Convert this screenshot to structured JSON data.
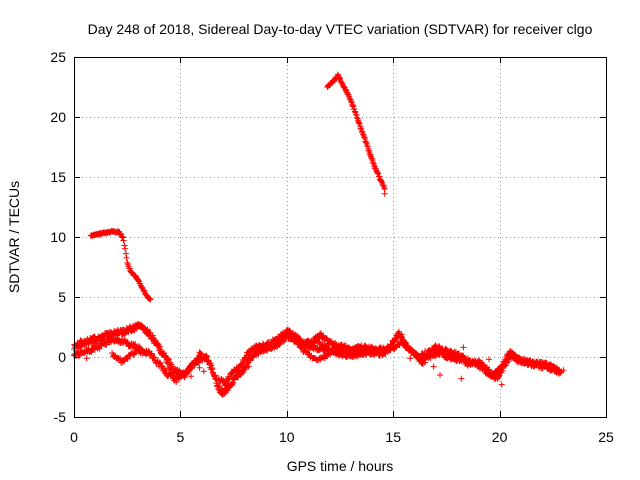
{
  "chart_data": {
    "type": "scatter",
    "title": "Day 248 of 2018, Sidereal Day-to-day VTEC variation (SDTVAR) for receiver clgo",
    "xlabel": "GPS time / hours",
    "ylabel": "SDTVAR / TECUs",
    "xlim": [
      0,
      25
    ],
    "ylim": [
      -5,
      25
    ],
    "xticks": [
      0,
      5,
      10,
      15,
      20,
      25
    ],
    "yticks": [
      -5,
      0,
      5,
      10,
      15,
      20,
      25
    ],
    "grid": true,
    "marker": "plus",
    "color": "#ff0000",
    "series": [
      {
        "name": "SDTVAR",
        "segments": [
          {
            "kind": "curve",
            "points": [
              [
                0.8,
                10.1
              ],
              [
                1.3,
                10.3
              ],
              [
                1.8,
                10.5
              ],
              [
                2.1,
                10.4
              ],
              [
                2.3,
                10.0
              ],
              [
                2.4,
                9.0
              ],
              [
                2.5,
                7.8
              ],
              [
                2.7,
                7.0
              ],
              [
                3.0,
                6.5
              ],
              [
                3.2,
                5.8
              ],
              [
                3.4,
                5.1
              ],
              [
                3.6,
                4.8
              ]
            ],
            "step": 0.03,
            "spread": 0.15
          },
          {
            "kind": "curve",
            "points": [
              [
                11.9,
                22.5
              ],
              [
                12.2,
                23.0
              ],
              [
                12.4,
                23.5
              ],
              [
                12.6,
                22.8
              ],
              [
                12.9,
                21.8
              ],
              [
                13.2,
                20.5
              ],
              [
                13.5,
                19.0
              ],
              [
                13.8,
                17.5
              ],
              [
                14.1,
                16.0
              ],
              [
                14.4,
                14.8
              ],
              [
                14.6,
                14.0
              ]
            ],
            "step": 0.025,
            "spread": 0.15
          },
          {
            "kind": "curve",
            "points": [
              [
                0.0,
                0.8
              ],
              [
                0.5,
                1.2
              ],
              [
                1.0,
                1.5
              ],
              [
                1.5,
                1.8
              ],
              [
                2.0,
                2.0
              ],
              [
                2.5,
                2.2
              ],
              [
                3.0,
                2.6
              ],
              [
                3.3,
                2.4
              ],
              [
                3.6,
                1.8
              ],
              [
                4.0,
                0.8
              ],
              [
                4.3,
                0.0
              ],
              [
                4.7,
                -1.2
              ],
              [
                5.2,
                -1.5
              ],
              [
                5.6,
                -0.6
              ],
              [
                6.0,
                0.2
              ]
            ],
            "step": 0.02,
            "spread": 0.5
          },
          {
            "kind": "curve",
            "points": [
              [
                0.0,
                0.2
              ],
              [
                0.6,
                0.5
              ],
              [
                1.2,
                0.9
              ],
              [
                1.8,
                1.5
              ],
              [
                2.4,
                1.2
              ],
              [
                3.0,
                0.8
              ],
              [
                3.6,
                0.2
              ],
              [
                4.0,
                -0.6
              ],
              [
                4.4,
                -1.4
              ],
              [
                4.8,
                -1.9
              ],
              [
                5.3,
                -1.2
              ],
              [
                5.8,
                -0.4
              ],
              [
                6.2,
                0.0
              ]
            ],
            "step": 0.03,
            "spread": 0.4
          },
          {
            "kind": "curve",
            "points": [
              [
                1.8,
                0.2
              ],
              [
                2.1,
                -0.2
              ],
              [
                2.3,
                -0.4
              ],
              [
                2.6,
                0.1
              ],
              [
                3.0,
                0.5
              ],
              [
                3.4,
                0.3
              ]
            ],
            "step": 0.04,
            "spread": 0.3
          },
          {
            "kind": "curve",
            "points": [
              [
                6.2,
                0.0
              ],
              [
                6.5,
                -1.0
              ],
              [
                6.8,
                -2.6
              ],
              [
                7.0,
                -3.0
              ],
              [
                7.3,
                -2.4
              ],
              [
                7.7,
                -1.5
              ],
              [
                8.0,
                -1.0
              ],
              [
                8.4,
                0.2
              ],
              [
                8.8,
                0.6
              ],
              [
                9.2,
                0.8
              ],
              [
                9.7,
                1.2
              ],
              [
                10.0,
                1.8
              ],
              [
                10.4,
                1.4
              ],
              [
                10.8,
                1.0
              ],
              [
                11.2,
                1.3
              ],
              [
                11.6,
                1.8
              ],
              [
                12.0,
                1.2
              ],
              [
                12.4,
                0.8
              ],
              [
                12.8,
                0.4
              ],
              [
                13.2,
                0.5
              ],
              [
                13.6,
                0.6
              ],
              [
                14.0,
                0.5
              ],
              [
                14.4,
                0.3
              ],
              [
                14.8,
                0.6
              ],
              [
                15.1,
                1.6
              ],
              [
                15.3,
                2.0
              ],
              [
                15.6,
                1.0
              ],
              [
                16.0,
                0.2
              ],
              [
                16.4,
                -0.4
              ],
              [
                16.8,
                0.2
              ],
              [
                17.2,
                0.4
              ],
              [
                17.6,
                0.0
              ],
              [
                18.2,
                -0.2
              ],
              [
                18.5,
                -0.5
              ],
              [
                19.0,
                -0.4
              ],
              [
                19.4,
                -1.0
              ],
              [
                19.7,
                -1.6
              ],
              [
                20.0,
                -1.0
              ],
              [
                20.3,
                -0.2
              ],
              [
                20.5,
                0.4
              ],
              [
                20.8,
                -0.2
              ],
              [
                21.2,
                -0.4
              ],
              [
                21.6,
                -0.6
              ],
              [
                22.0,
                -0.6
              ],
              [
                22.4,
                -0.8
              ],
              [
                22.8,
                -1.3
              ]
            ],
            "step": 0.02,
            "spread": 0.45
          },
          {
            "kind": "curve",
            "points": [
              [
                6.8,
                -1.8
              ],
              [
                7.1,
                -2.2
              ],
              [
                7.4,
                -1.4
              ],
              [
                7.8,
                -0.8
              ],
              [
                8.2,
                0.4
              ],
              [
                8.6,
                0.9
              ],
              [
                9.0,
                1.0
              ],
              [
                9.5,
                1.4
              ],
              [
                10.0,
                2.2
              ],
              [
                10.5,
                1.6
              ],
              [
                11.0,
                0.9
              ],
              [
                11.5,
                0.7
              ],
              [
                12.0,
                0.6
              ],
              [
                12.5,
                0.4
              ],
              [
                13.0,
                0.6
              ],
              [
                13.5,
                0.8
              ],
              [
                14.0,
                0.7
              ],
              [
                14.5,
                0.6
              ],
              [
                15.0,
                0.8
              ],
              [
                15.4,
                1.2
              ],
              [
                15.8,
                0.5
              ],
              [
                16.2,
                0.0
              ],
              [
                16.6,
                0.3
              ],
              [
                17.0,
                0.8
              ],
              [
                17.5,
                0.5
              ],
              [
                18.0,
                0.2
              ],
              [
                18.6,
                -0.3
              ],
              [
                19.1,
                -0.8
              ],
              [
                19.5,
                -1.4
              ],
              [
                19.9,
                -1.8
              ],
              [
                20.2,
                -0.8
              ],
              [
                20.6,
                0.2
              ],
              [
                21.0,
                -0.3
              ],
              [
                21.5,
                -0.5
              ],
              [
                22.0,
                -0.8
              ],
              [
                22.5,
                -1.0
              ],
              [
                22.9,
                -1.2
              ]
            ],
            "step": 0.03,
            "spread": 0.4
          },
          {
            "kind": "curve",
            "points": [
              [
                10.6,
                0.8
              ],
              [
                11.0,
                0.2
              ],
              [
                11.4,
                -0.2
              ],
              [
                11.8,
                0.0
              ],
              [
                12.2,
                0.6
              ],
              [
                12.6,
                1.0
              ],
              [
                13.0,
                0.6
              ],
              [
                13.4,
                0.2
              ],
              [
                13.8,
                0.4
              ]
            ],
            "step": 0.04,
            "spread": 0.25
          },
          {
            "kind": "curve",
            "points": [
              [
                11.3,
                1.5
              ],
              [
                11.7,
                1.0
              ],
              [
                12.1,
                0.4
              ],
              [
                12.6,
                0.1
              ],
              [
                13.1,
                0.0
              ],
              [
                13.6,
                0.3
              ],
              [
                14.1,
                0.2
              ]
            ],
            "step": 0.05,
            "spread": 0.2
          },
          {
            "kind": "cluster",
            "points": [
              [
                5.5,
                -1.6
              ],
              [
                5.9,
                -0.9
              ],
              [
                6.1,
                -1.2
              ],
              [
                4.5,
                -1.0
              ],
              [
                1.2,
                0.7
              ],
              [
                0.3,
                1.4
              ],
              [
                0.6,
                -0.1
              ],
              [
                4.1,
                0.3
              ],
              [
                18.1,
                -0.2
              ],
              [
                18.2,
                -1.8
              ],
              [
                18.3,
                0.8
              ],
              [
                17.2,
                -1.5
              ],
              [
                16.9,
                -0.8
              ],
              [
                20.1,
                -2.3
              ],
              [
                19.5,
                -0.2
              ],
              [
                15.8,
                -0.1
              ],
              [
                16.5,
                0.5
              ],
              [
                23.0,
                -1.1
              ],
              [
                14.6,
                13.6
              ],
              [
                5.9,
                0.4
              ],
              [
                8.2,
                -0.8
              ]
            ]
          }
        ]
      }
    ]
  }
}
